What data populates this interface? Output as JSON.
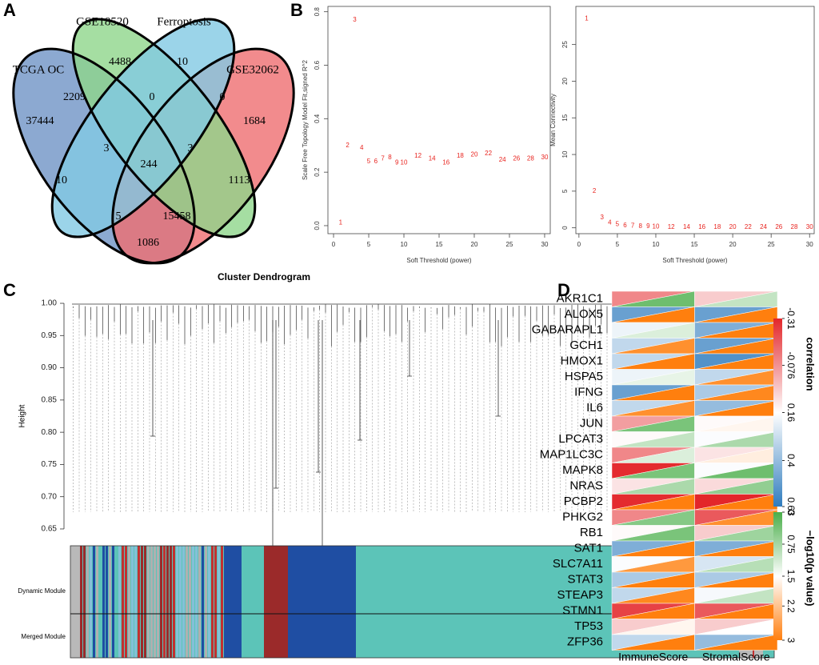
{
  "chart_data": [
    {
      "type": "venn",
      "panel": "A",
      "sets": [
        "TCGA OC",
        "GSE18520",
        "Ferroptosis",
        "GSE32062"
      ],
      "colors": [
        "#6f93c6",
        "#8fd68b",
        "#82c9e3",
        "#ef6e70"
      ],
      "values": [
        37444,
        4488,
        10,
        1684,
        2209,
        0,
        0,
        3,
        3,
        244,
        10,
        1113,
        5,
        15458,
        1086
      ]
    },
    {
      "type": "scatter",
      "panel": "B",
      "xlabel": "Soft Threshold (power)",
      "ylabel": "Scale Free Topology Model Fit,signed R^2",
      "color": "#e8231e",
      "x": [
        1,
        2,
        3,
        4,
        5,
        6,
        7,
        8,
        9,
        10,
        12,
        14,
        16,
        18,
        20,
        22,
        24,
        26,
        28,
        30
      ],
      "values": [
        0.01,
        0.3,
        0.77,
        0.29,
        0.24,
        0.24,
        0.25,
        0.255,
        0.235,
        0.235,
        0.26,
        0.25,
        0.235,
        0.26,
        0.265,
        0.27,
        0.245,
        0.25,
        0.25,
        0.255
      ],
      "xlim": [
        -0.8,
        30.8
      ],
      "ylim": [
        -0.03,
        0.82
      ],
      "xticks": [
        0,
        5,
        10,
        15,
        20,
        25,
        30
      ],
      "yticks": [
        {
          "value": 0,
          "label": "0.0"
        },
        0.2,
        0.4,
        0.6,
        0.8
      ]
    },
    {
      "type": "scatter",
      "xlabel": "Soft Threshold (power)",
      "ylabel": "Mean Connectivity",
      "color": "#e8231e",
      "x": [
        1,
        2,
        3,
        4,
        5,
        6,
        7,
        8,
        9,
        10,
        12,
        14,
        16,
        18,
        20,
        22,
        24,
        26,
        28,
        30
      ],
      "values": [
        28.5,
        5,
        1.4,
        0.7,
        0.45,
        0.3,
        0.25,
        0.2,
        0.17,
        0.15,
        0.1,
        0.1,
        0.1,
        0.1,
        0.1,
        0.1,
        0.1,
        0.1,
        0.1,
        0.1
      ],
      "xlim": [
        -0.4,
        30.6
      ],
      "ylim": [
        -0.8,
        30.2
      ],
      "xticks": [
        0,
        5,
        10,
        15,
        20,
        25,
        30
      ],
      "yticks": [
        0,
        5,
        10,
        15,
        20,
        25
      ]
    },
    {
      "type": "dendrogram",
      "panel": "C",
      "title": "Cluster Dendrogram",
      "ylabel": "Height",
      "ylim": [
        0.645,
        1.005
      ],
      "yticks": [
        0.65,
        {
          "value": 0.7,
          "label": "0.70"
        },
        0.75,
        {
          "value": 0.8,
          "label": "0.80"
        },
        0.85,
        {
          "value": 0.9,
          "label": "0.90"
        },
        0.95,
        {
          "value": 1,
          "label": "1.00"
        }
      ],
      "module_rows": [
        "Dynamic Module",
        "Merged Module"
      ]
    },
    {
      "type": "heatmap",
      "panel": "D",
      "genes": [
        "AKR1C1",
        "ALOX5",
        "GABARAPL1",
        "GCH1",
        "HMOX1",
        "HSPA5",
        "IFNG",
        "IL6",
        "JUN",
        "LPCAT3",
        "MAP1LC3C",
        "MAPK8",
        "NRAS",
        "PCBP2",
        "PHKG2",
        "RB1",
        "SAT1",
        "SLC7A11",
        "STAT3",
        "STEAP3",
        "STMN1",
        "TP53",
        "ZFP36"
      ],
      "columns": [
        "ImmuneScore",
        "StromalScore"
      ],
      "correlation": [
        [
          -0.1,
          0.5,
          0.2,
          0.3,
          0.3,
          0.2,
          0.5,
          0.3,
          -0.05,
          0.15,
          -0.1,
          -0.3,
          0.1,
          -0.3,
          -0.1,
          0.15,
          0.45,
          0.17,
          0.35,
          0.3,
          -0.25,
          0.05,
          0.3
        ],
        [
          0.05,
          0.5,
          0.45,
          0.5,
          0.55,
          0.3,
          0.35,
          0.4,
          0.15,
          0.17,
          0.1,
          0.17,
          0.08,
          -0.31,
          -0.2,
          0.05,
          0.45,
          0.25,
          0.35,
          0.18,
          -0.2,
          0.05,
          0.4
        ]
      ],
      "neg_log10_p": [
        [
          0.3,
          3,
          1.2,
          2.8,
          3,
          1.3,
          3,
          2.8,
          0.4,
          1,
          1.2,
          0.4,
          0.8,
          3,
          0.5,
          0.4,
          3,
          2.7,
          3,
          2.9,
          3,
          1.6,
          3
        ],
        [
          1,
          3,
          3,
          3,
          3,
          2.8,
          2.9,
          3,
          1.6,
          0.8,
          1.7,
          0.3,
          0.6,
          3,
          2.8,
          0.7,
          3,
          0.9,
          3,
          1,
          3,
          1.5,
          3
        ]
      ],
      "correlation_title": "correlation",
      "p_title": "−log10(p value)",
      "correlation_ticks": [
        -0.31,
        -0.076,
        0.16,
        0.4,
        0.63
      ],
      "p_ticks": [
        0,
        0.75,
        1.5,
        2.2,
        3
      ],
      "correlation_colors": [
        "#e3262a",
        "#ffffff",
        "#2f7cbe"
      ],
      "p_colors": [
        "#4aae4a",
        "#ffffff",
        "#ff7f0e"
      ]
    }
  ]
}
